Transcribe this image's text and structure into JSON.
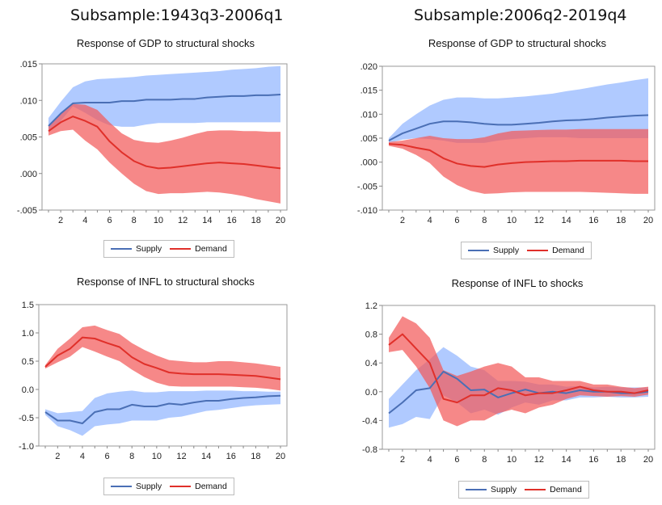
{
  "headers": {
    "left": "Subsample:1943q3-2006q1",
    "right": "Subsample:2006q2-2019q4"
  },
  "colors": {
    "supply_line": "#4a6fb5",
    "supply_band": "#8fb4ff",
    "demand_line": "#e0302a",
    "demand_band": "#f25a5a"
  },
  "chart_data": [
    {
      "type": "line",
      "title": "Response of GDP to structural shocks",
      "x": [
        1,
        2,
        3,
        4,
        5,
        6,
        7,
        8,
        9,
        10,
        11,
        12,
        13,
        14,
        15,
        16,
        17,
        18,
        19,
        20
      ],
      "xticks": [
        "2",
        "4",
        "6",
        "8",
        "10",
        "12",
        "14",
        "16",
        "18",
        "20"
      ],
      "yticks": [
        ".015",
        ".010",
        ".005",
        ".000",
        "-.005"
      ],
      "yticks_values": [
        0.015,
        0.01,
        0.005,
        0.0,
        -0.005
      ],
      "ylim": [
        -0.005,
        0.015
      ],
      "legend": [
        "Supply",
        "Demand"
      ],
      "series": [
        {
          "name": "Supply",
          "values": [
            0.0065,
            0.0082,
            0.0096,
            0.0097,
            0.0097,
            0.0097,
            0.0099,
            0.0099,
            0.0101,
            0.0101,
            0.0101,
            0.0102,
            0.0102,
            0.0104,
            0.0105,
            0.0106,
            0.0106,
            0.0107,
            0.0107,
            0.0108
          ],
          "upper": [
            0.0076,
            0.0098,
            0.0118,
            0.0126,
            0.0129,
            0.013,
            0.0131,
            0.0132,
            0.0134,
            0.0135,
            0.0136,
            0.0137,
            0.0138,
            0.0139,
            0.014,
            0.0142,
            0.0143,
            0.0144,
            0.0146,
            0.0147
          ],
          "lower": [
            0.0056,
            0.0072,
            0.0092,
            0.0083,
            0.0073,
            0.0066,
            0.0064,
            0.0064,
            0.0067,
            0.0069,
            0.0069,
            0.0069,
            0.0069,
            0.007,
            0.007,
            0.007,
            0.007,
            0.007,
            0.007,
            0.007
          ]
        },
        {
          "name": "Demand",
          "values": [
            0.0058,
            0.007,
            0.0078,
            0.0072,
            0.0064,
            0.0044,
            0.0029,
            0.0017,
            0.001,
            0.0007,
            0.0008,
            0.001,
            0.0012,
            0.0014,
            0.0015,
            0.0014,
            0.0013,
            0.0011,
            0.0009,
            0.0007
          ],
          "upper": [
            0.0065,
            0.0082,
            0.0095,
            0.0094,
            0.0087,
            0.007,
            0.0055,
            0.0046,
            0.0043,
            0.0042,
            0.0045,
            0.0049,
            0.0054,
            0.0058,
            0.0059,
            0.0059,
            0.0058,
            0.0058,
            0.0057,
            0.0057
          ],
          "lower": [
            0.0052,
            0.0058,
            0.006,
            0.0045,
            0.0033,
            0.0015,
            0.0,
            -0.0014,
            -0.0024,
            -0.0028,
            -0.0027,
            -0.0027,
            -0.0026,
            -0.0025,
            -0.0026,
            -0.0028,
            -0.0031,
            -0.0035,
            -0.0038,
            -0.0041
          ]
        }
      ]
    },
    {
      "type": "line",
      "title": "Response of GDP to structural shocks",
      "x": [
        1,
        2,
        3,
        4,
        5,
        6,
        7,
        8,
        9,
        10,
        11,
        12,
        13,
        14,
        15,
        16,
        17,
        18,
        19,
        20
      ],
      "xticks": [
        "2",
        "4",
        "6",
        "8",
        "10",
        "12",
        "14",
        "16",
        "18",
        "20"
      ],
      "yticks": [
        ".020",
        ".015",
        ".010",
        ".005",
        ".000",
        "-.005",
        "-.010"
      ],
      "yticks_values": [
        0.02,
        0.015,
        0.01,
        0.005,
        0.0,
        -0.005,
        -0.01
      ],
      "ylim": [
        -0.01,
        0.02
      ],
      "legend": [
        "Supply",
        "Demand"
      ],
      "series": [
        {
          "name": "Supply",
          "values": [
            0.0045,
            0.006,
            0.007,
            0.008,
            0.0085,
            0.0085,
            0.0083,
            0.008,
            0.0078,
            0.0078,
            0.008,
            0.0082,
            0.0085,
            0.0087,
            0.0088,
            0.009,
            0.0093,
            0.0095,
            0.0097,
            0.0098
          ],
          "upper": [
            0.005,
            0.008,
            0.01,
            0.0118,
            0.013,
            0.0135,
            0.0135,
            0.0133,
            0.0133,
            0.0135,
            0.0137,
            0.014,
            0.0143,
            0.0148,
            0.0152,
            0.0157,
            0.0162,
            0.0166,
            0.0171,
            0.0175
          ],
          "lower": [
            0.004,
            0.0047,
            0.005,
            0.0048,
            0.0045,
            0.004,
            0.004,
            0.004,
            0.0045,
            0.0048,
            0.005,
            0.0052,
            0.0052,
            0.0052,
            0.005,
            0.005,
            0.005,
            0.005,
            0.005,
            0.005
          ]
        },
        {
          "name": "Demand",
          "values": [
            0.0038,
            0.0036,
            0.003,
            0.0025,
            0.0008,
            -0.0003,
            -0.0008,
            -0.001,
            -0.0005,
            -0.0002,
            0.0,
            0.0001,
            0.0002,
            0.0002,
            0.0003,
            0.0003,
            0.0003,
            0.0003,
            0.0002,
            0.0002
          ],
          "upper": [
            0.0042,
            0.0045,
            0.005,
            0.0055,
            0.005,
            0.0048,
            0.0048,
            0.0052,
            0.006,
            0.0065,
            0.0066,
            0.0067,
            0.0068,
            0.0068,
            0.0069,
            0.0069,
            0.0069,
            0.0069,
            0.0069,
            0.0069
          ],
          "lower": [
            0.0034,
            0.0028,
            0.0015,
            -0.0002,
            -0.003,
            -0.0048,
            -0.006,
            -0.0066,
            -0.0065,
            -0.0063,
            -0.0062,
            -0.0062,
            -0.0062,
            -0.0062,
            -0.0062,
            -0.0063,
            -0.0064,
            -0.0065,
            -0.0066,
            -0.0066
          ]
        }
      ]
    },
    {
      "type": "line",
      "title": "Response of INFL to structural shocks",
      "x": [
        1,
        2,
        3,
        4,
        5,
        6,
        7,
        8,
        9,
        10,
        11,
        12,
        13,
        14,
        15,
        16,
        17,
        18,
        19,
        20
      ],
      "xticks": [
        "2",
        "4",
        "6",
        "8",
        "10",
        "12",
        "14",
        "16",
        "18",
        "20"
      ],
      "yticks": [
        "1.5",
        "1.0",
        "0.5",
        "0.0",
        "-0.5",
        "-1.0"
      ],
      "yticks_values": [
        1.5,
        1.0,
        0.5,
        0.0,
        -0.5,
        -1.0
      ],
      "ylim": [
        -1.0,
        1.5
      ],
      "legend": [
        "Supply",
        "Demand"
      ],
      "series": [
        {
          "name": "Supply",
          "values": [
            -0.4,
            -0.55,
            -0.55,
            -0.6,
            -0.4,
            -0.35,
            -0.35,
            -0.27,
            -0.3,
            -0.3,
            -0.25,
            -0.27,
            -0.23,
            -0.2,
            -0.2,
            -0.17,
            -0.15,
            -0.14,
            -0.12,
            -0.11
          ],
          "upper": [
            -0.35,
            -0.42,
            -0.4,
            -0.38,
            -0.15,
            -0.07,
            -0.04,
            -0.02,
            -0.05,
            -0.05,
            -0.03,
            -0.03,
            -0.03,
            -0.02,
            -0.02,
            -0.02,
            -0.03,
            -0.03,
            -0.04,
            -0.04
          ],
          "lower": [
            -0.45,
            -0.65,
            -0.72,
            -0.82,
            -0.65,
            -0.62,
            -0.6,
            -0.55,
            -0.55,
            -0.55,
            -0.5,
            -0.48,
            -0.43,
            -0.38,
            -0.36,
            -0.33,
            -0.3,
            -0.28,
            -0.27,
            -0.26
          ]
        },
        {
          "name": "Demand",
          "values": [
            0.4,
            0.6,
            0.72,
            0.92,
            0.9,
            0.82,
            0.75,
            0.57,
            0.45,
            0.38,
            0.3,
            0.28,
            0.27,
            0.27,
            0.27,
            0.26,
            0.25,
            0.24,
            0.21,
            0.18
          ],
          "upper": [
            0.43,
            0.72,
            0.9,
            1.1,
            1.13,
            1.05,
            0.98,
            0.82,
            0.7,
            0.6,
            0.52,
            0.5,
            0.48,
            0.48,
            0.5,
            0.5,
            0.48,
            0.46,
            0.43,
            0.4
          ],
          "lower": [
            0.37,
            0.48,
            0.58,
            0.75,
            0.67,
            0.58,
            0.5,
            0.35,
            0.22,
            0.12,
            0.06,
            0.05,
            0.05,
            0.05,
            0.05,
            0.05,
            0.04,
            0.03,
            0.01,
            -0.02
          ]
        }
      ]
    },
    {
      "type": "line",
      "title": "Response of INFL to shocks",
      "x": [
        1,
        2,
        3,
        4,
        5,
        6,
        7,
        8,
        9,
        10,
        11,
        12,
        13,
        14,
        15,
        16,
        17,
        18,
        19,
        20
      ],
      "xticks": [
        "2",
        "4",
        "6",
        "8",
        "10",
        "12",
        "14",
        "16",
        "18",
        "20"
      ],
      "yticks": [
        "1.2",
        "0.8",
        "0.4",
        "0.0",
        "-0.4",
        "-0.8"
      ],
      "yticks_values": [
        1.2,
        0.8,
        0.4,
        0.0,
        -0.4,
        -0.8
      ],
      "ylim": [
        -0.8,
        1.2
      ],
      "legend": [
        "Supply",
        "Demand"
      ],
      "series": [
        {
          "name": "Supply",
          "values": [
            -0.3,
            -0.15,
            0.02,
            0.05,
            0.28,
            0.18,
            0.02,
            0.03,
            -0.08,
            -0.02,
            0.03,
            -0.02,
            0.0,
            -0.02,
            0.02,
            0.0,
            0.0,
            -0.02,
            -0.02,
            0.0
          ],
          "upper": [
            -0.1,
            0.1,
            0.3,
            0.45,
            0.62,
            0.5,
            0.35,
            0.3,
            0.15,
            0.15,
            0.14,
            0.1,
            0.1,
            0.07,
            0.08,
            0.06,
            0.07,
            0.06,
            0.06,
            0.06
          ],
          "lower": [
            -0.5,
            -0.45,
            -0.35,
            -0.38,
            -0.05,
            -0.15,
            -0.3,
            -0.25,
            -0.32,
            -0.22,
            -0.15,
            -0.18,
            -0.12,
            -0.12,
            -0.08,
            -0.08,
            -0.07,
            -0.08,
            -0.08,
            -0.07
          ]
        },
        {
          "name": "Demand",
          "values": [
            0.65,
            0.8,
            0.6,
            0.4,
            -0.1,
            -0.15,
            -0.05,
            -0.05,
            0.05,
            0.02,
            -0.05,
            -0.02,
            -0.02,
            0.02,
            0.07,
            0.02,
            0.0,
            0.0,
            -0.02,
            0.02
          ],
          "upper": [
            0.75,
            1.05,
            0.95,
            0.75,
            0.3,
            0.22,
            0.28,
            0.35,
            0.4,
            0.35,
            0.2,
            0.2,
            0.15,
            0.15,
            0.15,
            0.1,
            0.1,
            0.07,
            0.05,
            0.07
          ],
          "lower": [
            0.55,
            0.58,
            0.35,
            0.05,
            -0.4,
            -0.48,
            -0.4,
            -0.4,
            -0.3,
            -0.25,
            -0.3,
            -0.22,
            -0.18,
            -0.1,
            -0.05,
            -0.06,
            -0.07,
            -0.06,
            -0.07,
            -0.04
          ]
        }
      ]
    }
  ]
}
